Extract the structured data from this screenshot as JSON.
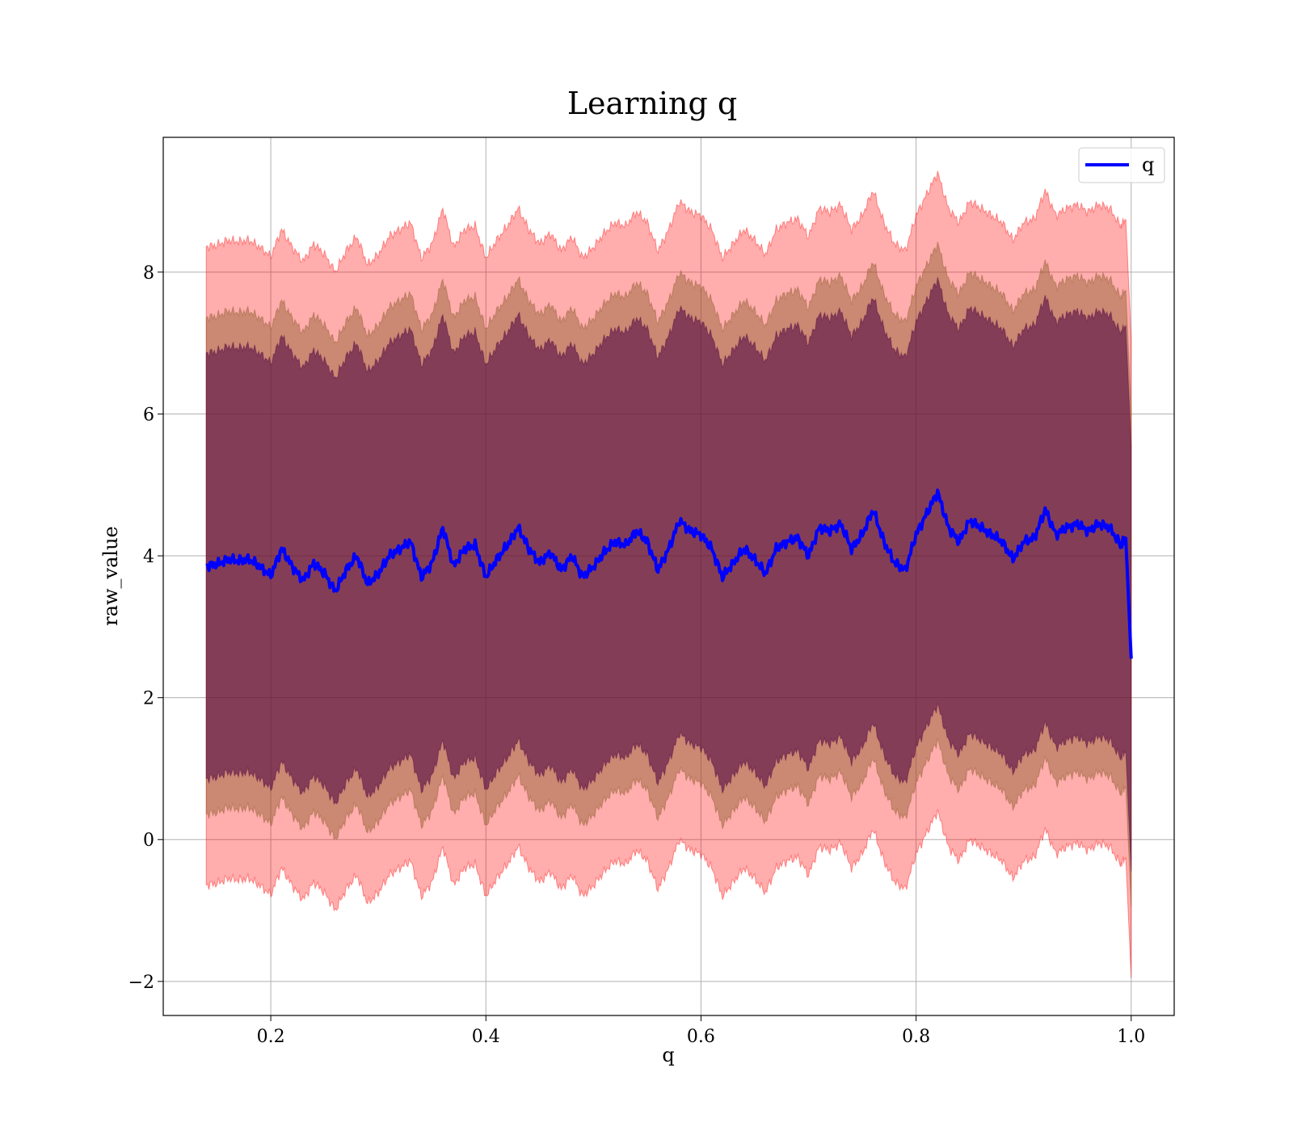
{
  "chart_data": {
    "type": "line",
    "title": "Learning q",
    "xlabel": "q",
    "ylabel": "raw_value",
    "xlim": [
      0.1,
      1.04
    ],
    "ylim": [
      -2.48,
      9.9
    ],
    "xticks": [
      0.2,
      0.4,
      0.6,
      0.8,
      1.0
    ],
    "xtick_labels": [
      "0.2",
      "0.4",
      "0.6",
      "0.8",
      "1.0"
    ],
    "yticks": [
      -2,
      0,
      2,
      4,
      6,
      8
    ],
    "ytick_labels": [
      "−2",
      "0",
      "2",
      "4",
      "6",
      "8"
    ],
    "grid": true,
    "legend": {
      "position": "top-right",
      "entries": [
        "q"
      ]
    },
    "colors": {
      "line": "#0000ff",
      "band": "#ff0000",
      "band_inner": "#8b5a2b",
      "band_core": "#4b0040",
      "grid": "#b0b0b0"
    },
    "bands_sigma": [
      3.0,
      3.5,
      4.5
    ],
    "series": [
      {
        "name": "q",
        "x": [
          0.14,
          0.15,
          0.16,
          0.17,
          0.18,
          0.19,
          0.2,
          0.21,
          0.22,
          0.23,
          0.24,
          0.25,
          0.26,
          0.27,
          0.28,
          0.29,
          0.3,
          0.31,
          0.32,
          0.33,
          0.34,
          0.35,
          0.36,
          0.37,
          0.38,
          0.39,
          0.4,
          0.41,
          0.42,
          0.43,
          0.44,
          0.45,
          0.46,
          0.47,
          0.48,
          0.49,
          0.5,
          0.51,
          0.52,
          0.53,
          0.54,
          0.55,
          0.56,
          0.57,
          0.58,
          0.59,
          0.6,
          0.61,
          0.62,
          0.63,
          0.64,
          0.65,
          0.66,
          0.67,
          0.68,
          0.69,
          0.7,
          0.71,
          0.72,
          0.73,
          0.74,
          0.75,
          0.76,
          0.77,
          0.78,
          0.79,
          0.8,
          0.81,
          0.82,
          0.83,
          0.84,
          0.85,
          0.86,
          0.87,
          0.88,
          0.89,
          0.9,
          0.91,
          0.92,
          0.93,
          0.94,
          0.95,
          0.96,
          0.97,
          0.98,
          0.99,
          0.995,
          1.0
        ],
        "values": [
          3.86,
          3.88,
          3.95,
          3.93,
          3.95,
          3.85,
          3.72,
          4.1,
          3.85,
          3.65,
          3.9,
          3.75,
          3.5,
          3.8,
          4.0,
          3.6,
          3.75,
          4.0,
          4.1,
          4.2,
          3.7,
          3.9,
          4.4,
          3.85,
          4.1,
          4.15,
          3.7,
          3.95,
          4.15,
          4.4,
          4.1,
          3.9,
          4.05,
          3.8,
          4.0,
          3.7,
          3.85,
          4.05,
          4.2,
          4.15,
          4.35,
          4.2,
          3.8,
          4.1,
          4.5,
          4.35,
          4.3,
          4.1,
          3.7,
          3.9,
          4.1,
          3.95,
          3.75,
          4.1,
          4.2,
          4.25,
          4.0,
          4.4,
          4.35,
          4.45,
          4.1,
          4.3,
          4.65,
          4.2,
          3.9,
          3.8,
          4.3,
          4.6,
          4.9,
          4.4,
          4.2,
          4.5,
          4.4,
          4.3,
          4.2,
          3.95,
          4.2,
          4.25,
          4.65,
          4.3,
          4.4,
          4.45,
          4.35,
          4.45,
          4.4,
          4.15,
          4.25,
          2.55
        ]
      }
    ]
  }
}
